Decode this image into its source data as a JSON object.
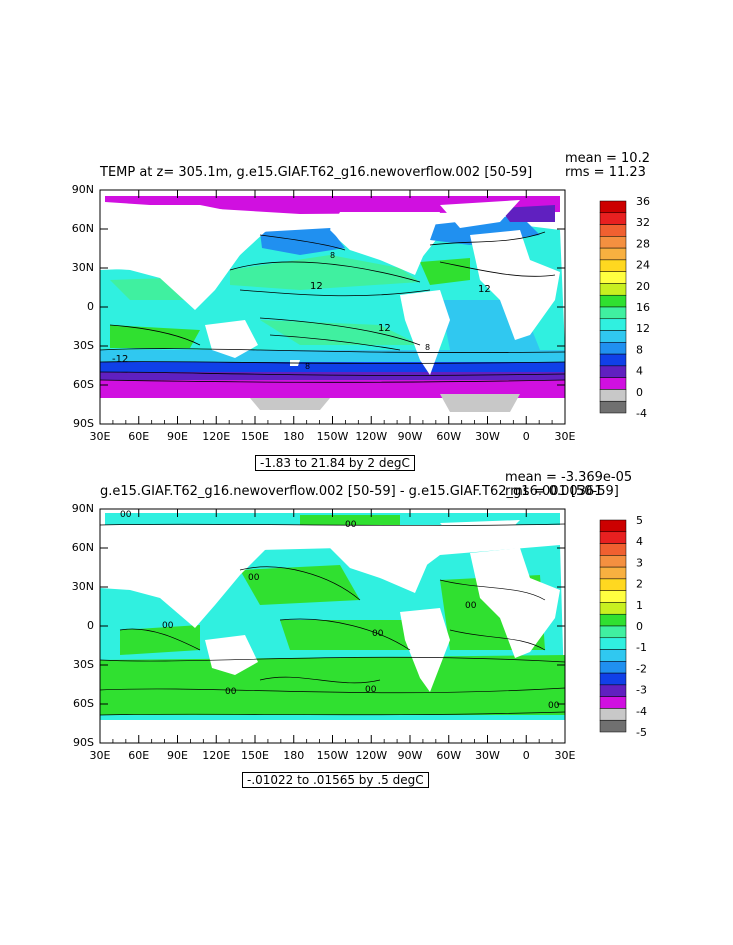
{
  "map1": {
    "title": "TEMP at z= 305.1m, g.e15.GIAF.T62_g16.newoverflow.002 [50-59]",
    "mean": "mean = 10.2",
    "rms": "rms = 11.23",
    "caption": "-1.83 to 21.84 by 2 degC",
    "colorbar_labels": [
      "36",
      "32",
      "28",
      "24",
      "20",
      "16",
      "12",
      "8",
      "4",
      "0",
      "-4"
    ],
    "colorbar_colors": [
      "#cc0000",
      "#e82020",
      "#f06030",
      "#f49040",
      "#f8b040",
      "#ffd820",
      "#ffff40",
      "#c8f020",
      "#30e030",
      "#40f0a0",
      "#30f0e0",
      "#30c8f0",
      "#2090f0",
      "#1040e8",
      "#6020c0",
      "#d010e0",
      "#c8c8c8",
      "#707070"
    ],
    "contour_labels": [
      "12",
      "12",
      "12",
      "8",
      "8",
      "8",
      "-12"
    ]
  },
  "map2": {
    "title": "g.e15.GIAF.T62_g16.newoverflow.002 [50-59] - g.e15.GIAF.T62_g16.001 [50-59]",
    "mean": "mean = -3.369e-05",
    "rms": "rms = 0.00361",
    "caption": "-.01022 to .01565 by .5 degC",
    "colorbar_labels": [
      "5",
      "4",
      "3",
      "2",
      "1",
      "0",
      "-1",
      "-2",
      "-3",
      "-4",
      "-5"
    ],
    "colorbar_colors": [
      "#cc0000",
      "#e82020",
      "#f06030",
      "#f49040",
      "#f8b040",
      "#ffd820",
      "#ffff40",
      "#c8f020",
      "#30e030",
      "#40f0a0",
      "#30f0e0",
      "#30c8f0",
      "#2090f0",
      "#1040e8",
      "#6020c0",
      "#d010e0",
      "#c8c8c8",
      "#707070"
    ],
    "contour_labels": [
      "00",
      "00",
      "00",
      "00",
      "00",
      "00",
      "00",
      "00",
      "00"
    ]
  },
  "axes": {
    "y_labels": [
      "90N",
      "60N",
      "30N",
      "0",
      "30S",
      "60S",
      "90S"
    ],
    "x_labels": [
      "30E",
      "60E",
      "90E",
      "120E",
      "150E",
      "180",
      "150W",
      "120W",
      "90W",
      "60W",
      "30W",
      "0",
      "30E"
    ]
  },
  "colors": {
    "land": "#ffffff",
    "arctic": "#d010e0",
    "antarctic_gray": "#c8c8c8"
  }
}
